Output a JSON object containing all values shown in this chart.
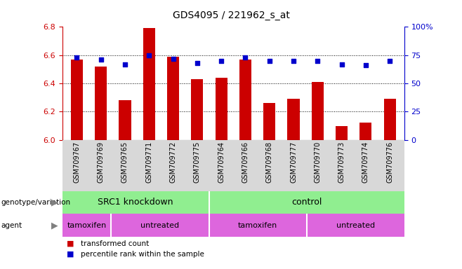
{
  "title": "GDS4095 / 221962_s_at",
  "samples": [
    "GSM709767",
    "GSM709769",
    "GSM709765",
    "GSM709771",
    "GSM709772",
    "GSM709775",
    "GSM709764",
    "GSM709766",
    "GSM709768",
    "GSM709777",
    "GSM709770",
    "GSM709773",
    "GSM709774",
    "GSM709776"
  ],
  "bar_values": [
    6.57,
    6.52,
    6.28,
    6.79,
    6.59,
    6.43,
    6.44,
    6.57,
    6.26,
    6.29,
    6.41,
    6.1,
    6.12,
    6.29
  ],
  "percentile_values": [
    73,
    71,
    67,
    75,
    72,
    68,
    70,
    73,
    70,
    70,
    70,
    67,
    66,
    70
  ],
  "bar_color": "#cc0000",
  "percentile_color": "#0000cc",
  "ylim_left": [
    6.0,
    6.8
  ],
  "ylim_right": [
    0,
    100
  ],
  "yticks_left": [
    6.0,
    6.2,
    6.4,
    6.6,
    6.8
  ],
  "yticks_right": [
    0,
    25,
    50,
    75,
    100
  ],
  "ytick_labels_right": [
    "0",
    "25",
    "50",
    "75",
    "100%"
  ],
  "grid_lines": [
    6.2,
    6.4,
    6.6
  ],
  "bar_color_hex": "#cc0000",
  "percentile_color_hex": "#0000cc",
  "xlabels_bg": "#d8d8d8",
  "geno_bg": "#90ee90",
  "agent_bg": "#dd66dd",
  "bar_width": 0.5,
  "background_color": "#ffffff"
}
